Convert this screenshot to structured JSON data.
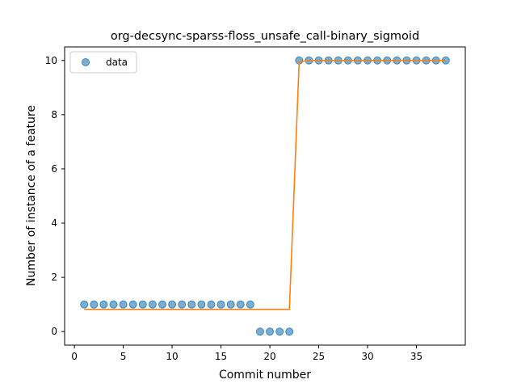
{
  "chart_data": {
    "type": "scatter",
    "title": "org-decsync-sparss-floss_unsafe_call-binary_sigmoid",
    "xlabel": "Commit number",
    "ylabel": "Number of instance of a feature",
    "xlim": [
      -1,
      40
    ],
    "ylim": [
      -0.5,
      10.5
    ],
    "xticks": [
      0,
      5,
      10,
      15,
      20,
      25,
      30,
      35
    ],
    "yticks": [
      0,
      2,
      4,
      6,
      8,
      10
    ],
    "legend": {
      "placement": "top-left",
      "entries": [
        "data"
      ]
    },
    "colors": {
      "data": "#1f77b4",
      "fit": "#ff7f0e"
    },
    "series": [
      {
        "name": "data",
        "mode": "markers",
        "x": [
          1,
          2,
          3,
          4,
          5,
          6,
          7,
          8,
          9,
          10,
          11,
          12,
          13,
          14,
          15,
          16,
          17,
          18,
          19,
          20,
          21,
          22,
          23,
          24,
          25,
          26,
          27,
          28,
          29,
          30,
          31,
          32,
          33,
          34,
          35,
          36,
          37,
          38
        ],
        "y": [
          1,
          1,
          1,
          1,
          1,
          1,
          1,
          1,
          1,
          1,
          1,
          1,
          1,
          1,
          1,
          1,
          1,
          1,
          0,
          0,
          0,
          0,
          10,
          10,
          10,
          10,
          10,
          10,
          10,
          10,
          10,
          10,
          10,
          10,
          10,
          10,
          10,
          10
        ]
      },
      {
        "mode": "line",
        "x": [
          1,
          2,
          3,
          4,
          5,
          6,
          7,
          8,
          9,
          10,
          11,
          12,
          13,
          14,
          15,
          16,
          17,
          18,
          19,
          20,
          21,
          22,
          23,
          24,
          25,
          26,
          27,
          28,
          29,
          30,
          31,
          32,
          33,
          34,
          35,
          36,
          37,
          38
        ],
        "y": [
          0.82,
          0.82,
          0.82,
          0.82,
          0.82,
          0.82,
          0.82,
          0.82,
          0.82,
          0.82,
          0.82,
          0.82,
          0.82,
          0.82,
          0.82,
          0.82,
          0.82,
          0.82,
          0.82,
          0.82,
          0.82,
          0.82,
          9.95,
          10,
          10,
          10,
          10,
          10,
          10,
          10,
          10,
          10,
          10,
          10,
          10,
          10,
          10,
          10
        ]
      }
    ]
  }
}
